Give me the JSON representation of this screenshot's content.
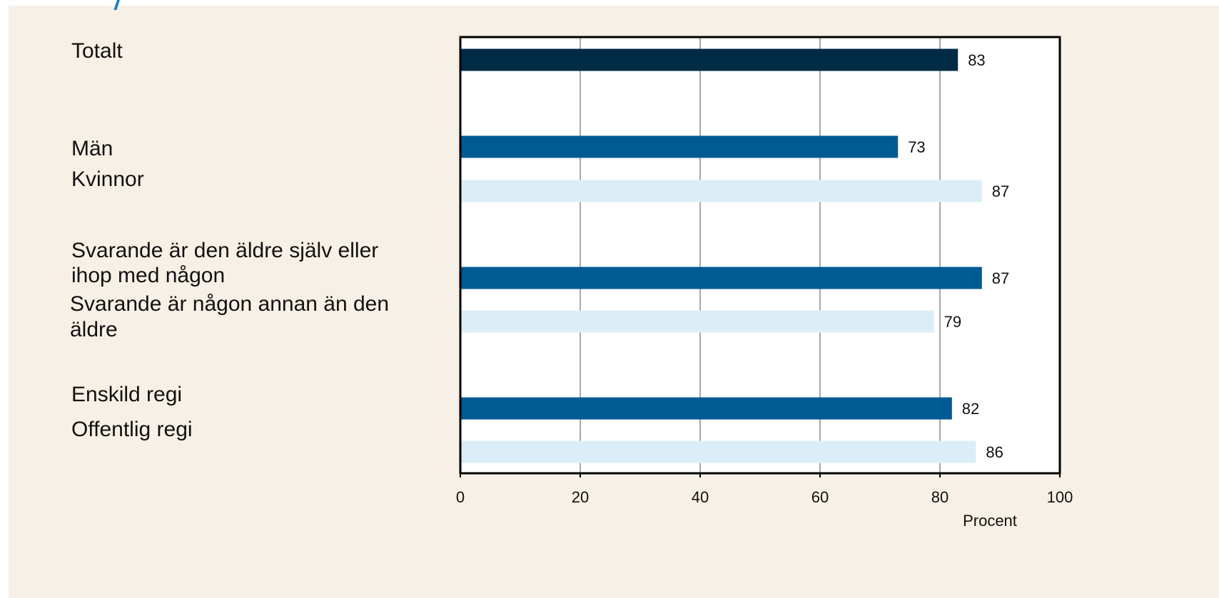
{
  "chart_data": {
    "type": "bar",
    "orientation": "horizontal",
    "categories": [
      "Totalt",
      "Män",
      "Kvinnor",
      "Svarande är den äldre själv eller ihop med någon",
      "Svarande är någon annan än den äldre",
      "Enskild regi",
      "Offentlig regi"
    ],
    "values": [
      83,
      73,
      87,
      87,
      79,
      82,
      86
    ],
    "bar_colors": [
      "#002b45",
      "#005a93",
      "#dbeef7",
      "#005a93",
      "#dbeef7",
      "#005a93",
      "#dbeef7"
    ],
    "xlabel": "Procent",
    "xlim": [
      0,
      100
    ],
    "xticks": [
      "0",
      "20",
      "40",
      "60",
      "80",
      "100"
    ],
    "grid": true,
    "legend": "none"
  },
  "labels": {
    "totalt": "Totalt",
    "man": "Män",
    "kvinnor": "Kvinnor",
    "svarande_sjalv_line1": "Svarande är den äldre själv eller",
    "svarande_sjalv_line2": "ihop med någon",
    "svarande_annan_line1": "Svarande är någon annan än den",
    "svarande_annan_line2": "äldre",
    "enskild": "Enskild regi",
    "offentlig": "Offentlig regi"
  },
  "colors": {
    "background": "#f7f0e6",
    "plot_background": "#ffffff",
    "dark_navy": "#002b45",
    "medium_blue": "#005a93",
    "light_blue": "#dbeef7",
    "grid": "#8c8c8c",
    "accent": "#1f7fc3"
  }
}
